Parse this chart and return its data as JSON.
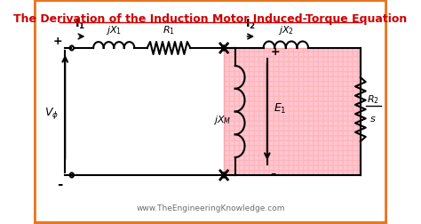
{
  "title": "The Derivation of the Induction Motor Induced-Torque Equation",
  "title_color": "#cc0000",
  "title_fontsize": 9,
  "bg_color": "#ffffff",
  "border_color": "#e87722",
  "watermark": "www.TheEngineeringKnowledge.com",
  "watermark_color": "#555555",
  "circuit_color": "#000000",
  "pink_fill": "#ffb0c0",
  "pink_edge": "#ff8888"
}
